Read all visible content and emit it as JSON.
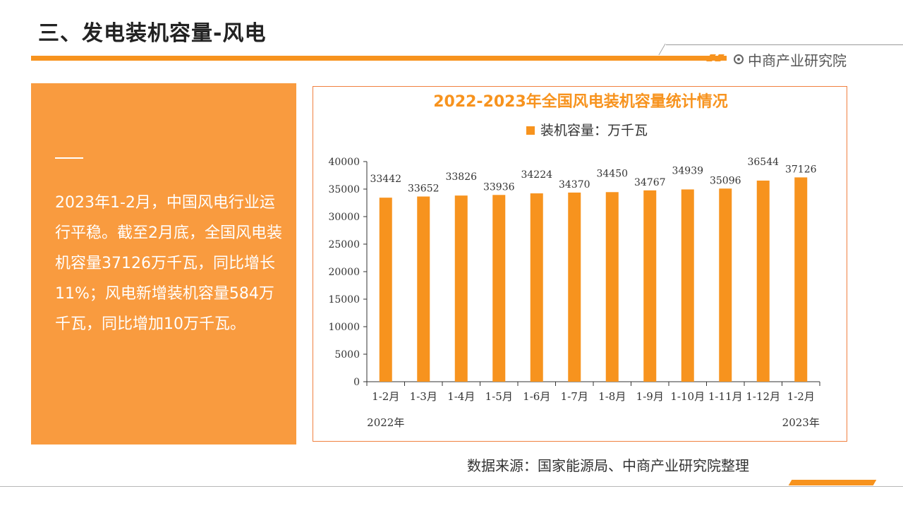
{
  "page": {
    "title": "三、发电装机容量-风电",
    "brand": "中商产业研究院",
    "summary": "2023年1-2月，中国风电行业运行平稳。截至2月底，全国风电装机容量37126万千瓦，同比增长11%；风电新增装机容量584万千瓦，同比增加10万千瓦。",
    "source": "数据来源：国家能源局、中商产业研究院整理",
    "accent_color": "#f7931e",
    "panel_color": "#f99b3f"
  },
  "chart_data": {
    "type": "bar",
    "title": "2022-2023年全国风电装机容量统计情况",
    "categories": [
      "1-2月",
      "1-3月",
      "1-4月",
      "1-5月",
      "1-6月",
      "1-7月",
      "1-8月",
      "1-9月",
      "1-10月",
      "1-11月",
      "1-12月",
      "1-2月"
    ],
    "series": [
      {
        "name": "装机容量：万千瓦",
        "color": "#f7931e",
        "values": [
          33442,
          33652,
          33826,
          33936,
          34224,
          34370,
          34450,
          34767,
          34939,
          35096,
          36544,
          37126
        ]
      }
    ],
    "year_labels": [
      "2022年",
      "2023年"
    ],
    "ylim": [
      0,
      40000
    ],
    "yticks": [
      0,
      5000,
      10000,
      15000,
      20000,
      25000,
      30000,
      35000,
      40000
    ],
    "legend_position": "top-center",
    "grid": false
  }
}
